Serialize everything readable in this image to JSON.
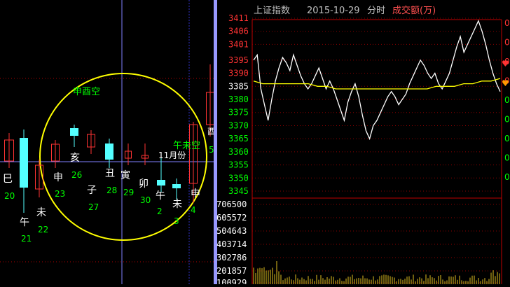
{
  "left_chart": {
    "annotations": {
      "circle_label": "申酉空",
      "right_label": "午未空",
      "month_label": "11月份",
      "side_char": "酉",
      "side_char2": "5"
    },
    "candles": [
      {
        "branch": "巳",
        "day": "20",
        "color": "red"
      },
      {
        "branch": "午",
        "day": "21",
        "color": "cyan"
      },
      {
        "branch": "未",
        "day": "22",
        "color": "red"
      },
      {
        "branch": "申",
        "day": "23",
        "color": "red"
      },
      {
        "branch": "亥",
        "day": "26",
        "color": "cyan"
      },
      {
        "branch": "子",
        "day": "27",
        "color": "red"
      },
      {
        "branch": "丑",
        "day": "28",
        "color": "cyan"
      },
      {
        "branch": "寅",
        "day": "29",
        "color": "red"
      },
      {
        "branch": "卯",
        "day": "30",
        "color": "red"
      },
      {
        "branch": "午",
        "day": "2",
        "color": "cyan"
      },
      {
        "branch": "未",
        "day": "3",
        "color": "cyan"
      },
      {
        "branch": "申",
        "day": "4",
        "color": "red"
      }
    ]
  },
  "right_chart": {
    "title": "上证指数",
    "date": "2015-10-29",
    "mode": "分时",
    "metric": "成交额(万)",
    "price_ticks": [
      "3411",
      "3406",
      "3401",
      "3395",
      "3390",
      "3385",
      "3380",
      "3375",
      "3370",
      "3365",
      "3360",
      "3355",
      "3350",
      "3345"
    ],
    "volume_ticks": [
      "706500",
      "605572",
      "504643",
      "403714",
      "302786",
      "201857",
      "100929"
    ],
    "right_edge_ticks": [
      "0",
      "0",
      "0",
      "0",
      "0",
      "0",
      "0",
      "0",
      "0"
    ]
  },
  "colors": {
    "bg": "#000000",
    "red": "#ff3333",
    "cyan": "#54ffff",
    "yellow": "#ffff00",
    "green": "#00ff00",
    "white": "#ffffff",
    "grid_red": "#8b0000"
  },
  "chart_data": {
    "type": "line",
    "title": "上证指数 2015-10-29 分时",
    "ylim": [
      3345,
      3411
    ],
    "series": [
      {
        "values": [
          3395,
          3397,
          3384,
          3378,
          3372,
          3380,
          3387,
          3392,
          3396,
          3394,
          3391,
          3397,
          3393,
          3389,
          3386,
          3384,
          3386,
          3389,
          3392,
          3388,
          3384,
          3387,
          3384,
          3380,
          3376,
          3372,
          3379,
          3383,
          3386,
          3381,
          3374,
          3368,
          3365,
          3370,
          3372,
          3375,
          3378,
          3381,
          3383,
          3381,
          3378,
          3380,
          3382,
          3386,
          3389,
          3392,
          3395,
          3393,
          3390,
          3388,
          3390,
          3386,
          3384,
          3387,
          3390,
          3395,
          3400,
          3404,
          3398,
          3401,
          3404,
          3407,
          3410,
          3406,
          3401,
          3395,
          3390,
          3386,
          3383
        ]
      },
      {
        "values": [
          3387,
          3386,
          3386,
          3386,
          3386,
          3386,
          3386,
          3385,
          3385,
          3384,
          3384,
          3384,
          3384,
          3384,
          3384,
          3384,
          3384,
          3384,
          3384,
          3384,
          3385,
          3385,
          3385,
          3386,
          3386,
          3387,
          3387,
          3388
        ]
      }
    ]
  }
}
